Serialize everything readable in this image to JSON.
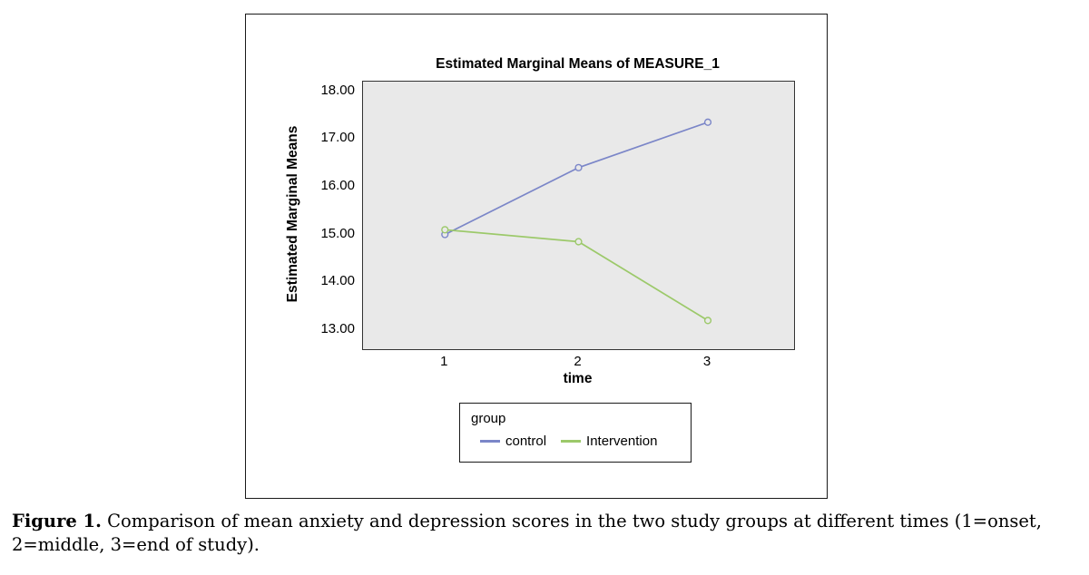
{
  "figure": {
    "caption_label": "Figure 1.",
    "caption_text": " Comparison of mean anxiety and depression scores in the two study groups at different times (1=onset, 2=middle, 3=end of study)."
  },
  "chart_data": {
    "type": "line",
    "title": "Estimated Marginal Means of MEASURE_1",
    "xlabel": "time",
    "ylabel": "Estimated Marginal Means",
    "x": [
      1,
      2,
      3
    ],
    "xtick_labels": [
      "1",
      "2",
      "3"
    ],
    "yticks": [
      13,
      14,
      15,
      16,
      17,
      18
    ],
    "ytick_labels": [
      "13.00",
      "14.00",
      "15.00",
      "16.00",
      "17.00",
      "18.00"
    ],
    "ylim": [
      12.6,
      18.2
    ],
    "grid": false,
    "plot_background": "#e9e9e9",
    "legend_title": "group",
    "legend_position": "below-plot-boxed",
    "series": [
      {
        "name": "control",
        "color": "#7b86c8",
        "values": [
          15.0,
          16.4,
          17.35
        ]
      },
      {
        "name": "Intervention",
        "color": "#9cc96a",
        "values": [
          15.1,
          14.85,
          13.2
        ]
      }
    ]
  }
}
